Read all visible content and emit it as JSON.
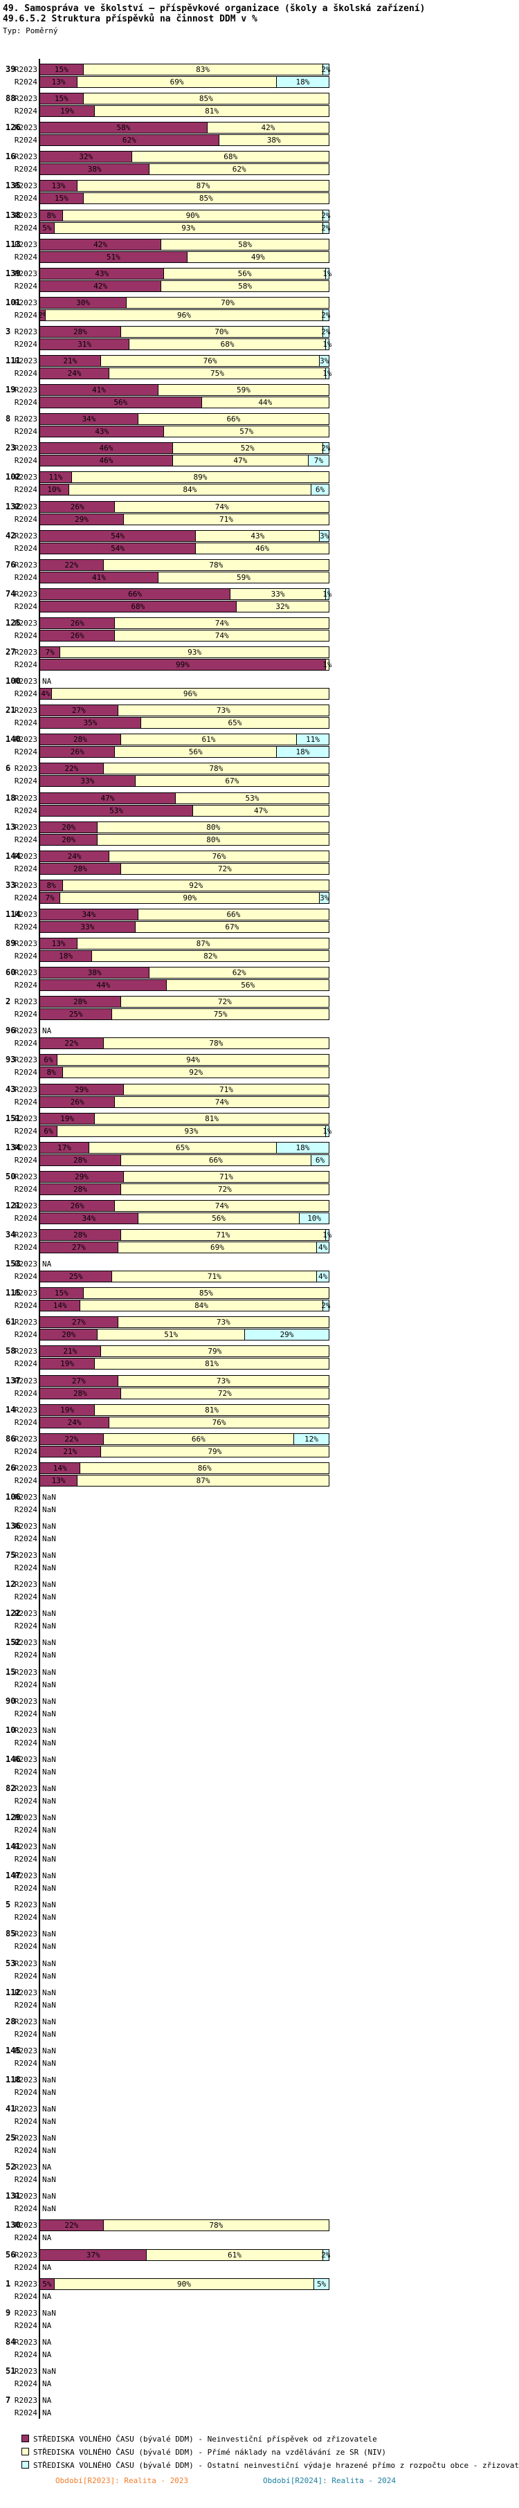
{
  "title_line1": "49. Samospráva ve školství – příspěvkové organizace (školy a školská zařízení)",
  "title_line2": "49.6.5.2 Struktura příspěvků na činnost DDM v %",
  "type_label": "Typ: Poměrný",
  "colors": {
    "series": [
      "#993366",
      "#FFFFCC",
      "#CCFFFF"
    ],
    "footer_2023": "#F07D2B",
    "footer_2024": "#1B7F9E",
    "axis": "#000000"
  },
  "legend": {
    "items": [
      {
        "series": "series-1",
        "color": "#993366",
        "label": "STŘEDISKA VOLNÉHO ČASU (bývalé DDM)  - Neinvestiční příspěvek od zřizovatele"
      },
      {
        "series": "series-2",
        "color": "#FFFFCC",
        "label": "STŘEDISKA VOLNÉHO ČASU (bývalé DDM)  - Přímé náklady na vzdělávání ze SR (NIV)"
      },
      {
        "series": "series-3",
        "color": "#CCFFFF",
        "label": "STŘEDISKA VOLNÉHO ČASU (bývalé DDM)  - Ostatní neinvestiční výdaje hrazené přímo z rozpočtu obce - zřizovatele"
      }
    ]
  },
  "footer": {
    "left": "Období[R2023]: Realita - 2023",
    "right": "Období[R2024]: Realita - 2024"
  },
  "chart_data": {
    "type": "bar",
    "orientation": "horizontal",
    "stacked": true,
    "unit": "%",
    "x_range": [
      0,
      100
    ],
    "row_labels": [
      "R2023",
      "R2024"
    ],
    "series_names": [
      "Neinvestiční příspěvek od zřizovatele",
      "Přímé náklady na vzdělávání ze SR (NIV)",
      "Ostatní neinvestiční výdaje hrazené přímo z rozpočtu obce - zřizovatele"
    ],
    "groups": [
      {
        "id": "39",
        "r2023": [
          15,
          83,
          2
        ],
        "r2024": [
          13,
          69,
          18
        ]
      },
      {
        "id": "88",
        "r2023": [
          15,
          85,
          0
        ],
        "r2024": [
          19,
          81,
          0
        ]
      },
      {
        "id": "126",
        "r2023": [
          58,
          42,
          0
        ],
        "r2024": [
          62,
          38,
          0
        ]
      },
      {
        "id": "16",
        "r2023": [
          32,
          68,
          0
        ],
        "r2024": [
          38,
          62,
          0
        ]
      },
      {
        "id": "135",
        "r2023": [
          13,
          87,
          0
        ],
        "r2024": [
          15,
          85,
          0
        ]
      },
      {
        "id": "138",
        "r2023": [
          8,
          90,
          2
        ],
        "r2024": [
          5,
          93,
          2
        ]
      },
      {
        "id": "113",
        "r2023": [
          42,
          58,
          0
        ],
        "r2024": [
          51,
          49,
          0
        ]
      },
      {
        "id": "139",
        "r2023": [
          43,
          56,
          1
        ],
        "r2024": [
          42,
          58,
          0
        ]
      },
      {
        "id": "101",
        "r2023": [
          30,
          70,
          0
        ],
        "r2024": [
          2,
          96,
          2
        ]
      },
      {
        "id": "3",
        "r2023": [
          28,
          70,
          2
        ],
        "r2024": [
          31,
          68,
          1
        ]
      },
      {
        "id": "111",
        "r2023": [
          21,
          76,
          3
        ],
        "r2024": [
          24,
          75,
          1
        ]
      },
      {
        "id": "19",
        "r2023": [
          41,
          59,
          0
        ],
        "r2024": [
          56,
          44,
          0
        ]
      },
      {
        "id": "8",
        "r2023": [
          34,
          66,
          0
        ],
        "r2024": [
          43,
          57,
          0
        ]
      },
      {
        "id": "23",
        "r2023": [
          46,
          52,
          2
        ],
        "r2024": [
          46,
          47,
          7
        ]
      },
      {
        "id": "102",
        "r2023": [
          11,
          89,
          0
        ],
        "r2024": [
          10,
          84,
          6
        ]
      },
      {
        "id": "132",
        "r2023": [
          26,
          74,
          0
        ],
        "r2024": [
          29,
          71,
          0
        ]
      },
      {
        "id": "42",
        "r2023": [
          54,
          43,
          3
        ],
        "r2024": [
          54,
          46,
          0
        ]
      },
      {
        "id": "76",
        "r2023": [
          22,
          78,
          0
        ],
        "r2024": [
          41,
          59,
          0
        ]
      },
      {
        "id": "74",
        "r2023": [
          66,
          33,
          1
        ],
        "r2024": [
          68,
          32,
          0
        ]
      },
      {
        "id": "125",
        "r2023": [
          26,
          74,
          0
        ],
        "r2024": [
          26,
          74,
          0
        ]
      },
      {
        "id": "27",
        "r2023": [
          7,
          93,
          0
        ],
        "r2024": [
          99,
          1,
          0
        ]
      },
      {
        "id": "100",
        "r2023": "NA",
        "r2024": [
          4,
          96,
          0
        ]
      },
      {
        "id": "21",
        "r2023": [
          27,
          73,
          0
        ],
        "r2024": [
          35,
          65,
          0
        ]
      },
      {
        "id": "140",
        "r2023": [
          28,
          61,
          11
        ],
        "r2024": [
          26,
          56,
          18
        ]
      },
      {
        "id": "6",
        "r2023": [
          22,
          78,
          0
        ],
        "r2024": [
          33,
          67,
          0
        ]
      },
      {
        "id": "18",
        "r2023": [
          47,
          53,
          0
        ],
        "r2024": [
          53,
          47,
          0
        ]
      },
      {
        "id": "13",
        "r2023": [
          20,
          80,
          0
        ],
        "r2024": [
          20,
          80,
          0
        ]
      },
      {
        "id": "144",
        "r2023": [
          24,
          76,
          0
        ],
        "r2024": [
          28,
          72,
          0
        ]
      },
      {
        "id": "33",
        "r2023": [
          8,
          92,
          0
        ],
        "r2024": [
          7,
          90,
          3
        ]
      },
      {
        "id": "114",
        "r2023": [
          34,
          66,
          0
        ],
        "r2024": [
          33,
          67,
          0
        ]
      },
      {
        "id": "89",
        "r2023": [
          13,
          87,
          0
        ],
        "r2024": [
          18,
          82,
          0
        ]
      },
      {
        "id": "60",
        "r2023": [
          38,
          62,
          0
        ],
        "r2024": [
          44,
          56,
          0
        ]
      },
      {
        "id": "2",
        "r2023": [
          28,
          72,
          0
        ],
        "r2024": [
          25,
          75,
          0
        ]
      },
      {
        "id": "96",
        "r2023": "NA",
        "r2024": [
          22,
          78,
          0
        ]
      },
      {
        "id": "93",
        "r2023": [
          6,
          94,
          0
        ],
        "r2024": [
          8,
          92,
          0
        ]
      },
      {
        "id": "43",
        "r2023": [
          29,
          71,
          0
        ],
        "r2024": [
          26,
          74,
          0
        ]
      },
      {
        "id": "151",
        "r2023": [
          19,
          81,
          0
        ],
        "r2024": [
          6,
          93,
          1
        ]
      },
      {
        "id": "134",
        "r2023": [
          17,
          65,
          18
        ],
        "r2024": [
          28,
          66,
          6
        ]
      },
      {
        "id": "50",
        "r2023": [
          29,
          71,
          0
        ],
        "r2024": [
          28,
          72,
          0
        ]
      },
      {
        "id": "121",
        "r2023": [
          26,
          74,
          0
        ],
        "r2024": [
          34,
          56,
          10
        ]
      },
      {
        "id": "34",
        "r2023": [
          28,
          71,
          1
        ],
        "r2024": [
          27,
          69,
          4
        ]
      },
      {
        "id": "153",
        "r2023": "NA",
        "r2024": [
          25,
          71,
          4
        ]
      },
      {
        "id": "115",
        "r2023": [
          15,
          85,
          0
        ],
        "r2024": [
          14,
          84,
          2
        ]
      },
      {
        "id": "61",
        "r2023": [
          27,
          73,
          0
        ],
        "r2024": [
          20,
          51,
          29
        ]
      },
      {
        "id": "58",
        "r2023": [
          21,
          79,
          0
        ],
        "r2024": [
          19,
          81,
          0
        ]
      },
      {
        "id": "137",
        "r2023": [
          27,
          73,
          0
        ],
        "r2024": [
          28,
          72,
          0
        ]
      },
      {
        "id": "14",
        "r2023": [
          19,
          81,
          0
        ],
        "r2024": [
          24,
          76,
          0
        ]
      },
      {
        "id": "86",
        "r2023": [
          22,
          66,
          12
        ],
        "r2024": [
          21,
          79,
          0
        ]
      },
      {
        "id": "26",
        "r2023": [
          14,
          86,
          0
        ],
        "r2024": [
          13,
          87,
          0
        ]
      },
      {
        "id": "106",
        "r2023": "NaN",
        "r2024": "NaN"
      },
      {
        "id": "136",
        "r2023": "NaN",
        "r2024": "NaN"
      },
      {
        "id": "75",
        "r2023": "NaN",
        "r2024": "NaN"
      },
      {
        "id": "12",
        "r2023": "NaN",
        "r2024": "NaN"
      },
      {
        "id": "122",
        "r2023": "NaN",
        "r2024": "NaN"
      },
      {
        "id": "152",
        "r2023": "NaN",
        "r2024": "NaN"
      },
      {
        "id": "15",
        "r2023": "NaN",
        "r2024": "NaN"
      },
      {
        "id": "90",
        "r2023": "NaN",
        "r2024": "NaN"
      },
      {
        "id": "10",
        "r2023": "NaN",
        "r2024": "NaN"
      },
      {
        "id": "146",
        "r2023": "NaN",
        "r2024": "NaN"
      },
      {
        "id": "82",
        "r2023": "NaN",
        "r2024": "NaN"
      },
      {
        "id": "129",
        "r2023": "NaN",
        "r2024": "NaN"
      },
      {
        "id": "141",
        "r2023": "NaN",
        "r2024": "NaN"
      },
      {
        "id": "147",
        "r2023": "NaN",
        "r2024": "NaN"
      },
      {
        "id": "5",
        "r2023": "NaN",
        "r2024": "NaN"
      },
      {
        "id": "85",
        "r2023": "NaN",
        "r2024": "NaN"
      },
      {
        "id": "53",
        "r2023": "NaN",
        "r2024": "NaN"
      },
      {
        "id": "112",
        "r2023": "NaN",
        "r2024": "NaN"
      },
      {
        "id": "28",
        "r2023": "NaN",
        "r2024": "NaN"
      },
      {
        "id": "145",
        "r2023": "NaN",
        "r2024": "NaN"
      },
      {
        "id": "118",
        "r2023": "NaN",
        "r2024": "NaN"
      },
      {
        "id": "41",
        "r2023": "NaN",
        "r2024": "NaN"
      },
      {
        "id": "25",
        "r2023": "NaN",
        "r2024": "NaN"
      },
      {
        "id": "52",
        "r2023": "NA",
        "r2024": "NaN"
      },
      {
        "id": "131",
        "r2023": "NaN",
        "r2024": "NaN"
      },
      {
        "id": "130",
        "r2023": [
          22,
          78,
          0
        ],
        "r2024": "NA"
      },
      {
        "id": "56",
        "r2023": [
          37,
          61,
          2
        ],
        "r2024": "NA"
      },
      {
        "id": "1",
        "r2023": [
          5,
          90,
          5
        ],
        "r2024": "NA"
      },
      {
        "id": "9",
        "r2023": "NaN",
        "r2024": "NA"
      },
      {
        "id": "84",
        "r2023": "NA",
        "r2024": "NA"
      },
      {
        "id": "51",
        "r2023": "NaN",
        "r2024": "NA"
      },
      {
        "id": "7",
        "r2023": "NA",
        "r2024": "NA"
      }
    ]
  }
}
